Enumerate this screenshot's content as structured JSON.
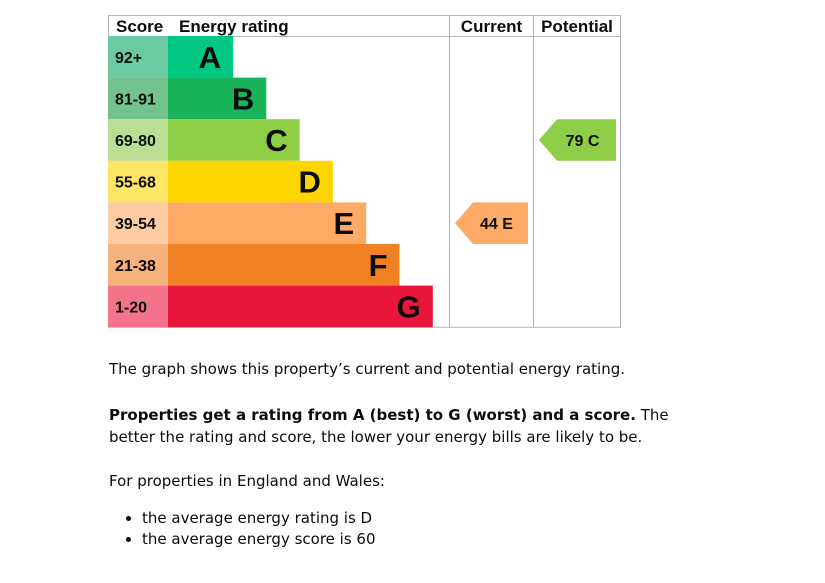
{
  "chart_data": {
    "type": "bar",
    "headers": {
      "score": "Score",
      "energy_rating": "Energy rating",
      "current": "Current",
      "potential": "Potential"
    },
    "bands": [
      {
        "letter": "A",
        "range": "92+",
        "color": "#00c781",
        "score_color": "#6ccaa2"
      },
      {
        "letter": "B",
        "range": "81-91",
        "color": "#19b459",
        "score_color": "#73c38e"
      },
      {
        "letter": "C",
        "range": "69-80",
        "color": "#8dce46",
        "score_color": "#badf94"
      },
      {
        "letter": "D",
        "range": "55-68",
        "color": "#ffd500",
        "score_color": "#ffe566"
      },
      {
        "letter": "E",
        "range": "39-54",
        "color": "#fcaa65",
        "score_color": "#fdcca3"
      },
      {
        "letter": "F",
        "range": "21-38",
        "color": "#ef8023",
        "score_color": "#f5b27b"
      },
      {
        "letter": "G",
        "range": "1-20",
        "color": "#e9153b",
        "score_color": "#f2738a"
      }
    ],
    "current": {
      "score": 44,
      "letter": "E",
      "label": "44 E",
      "color": "#fcaa65"
    },
    "potential": {
      "score": 79,
      "letter": "C",
      "label": "79 C",
      "color": "#8dce46"
    }
  },
  "text": {
    "intro": "The graph shows this property’s current and potential energy rating.",
    "ratings_bold": "Properties get a rating from A (best) to G (worst) and a score.",
    "ratings_rest": " The better the rating and score, the lower your energy bills are likely to be.",
    "region": "For properties in England and Wales:",
    "averages": [
      "the average energy rating is D",
      "the average energy score is 60"
    ]
  }
}
